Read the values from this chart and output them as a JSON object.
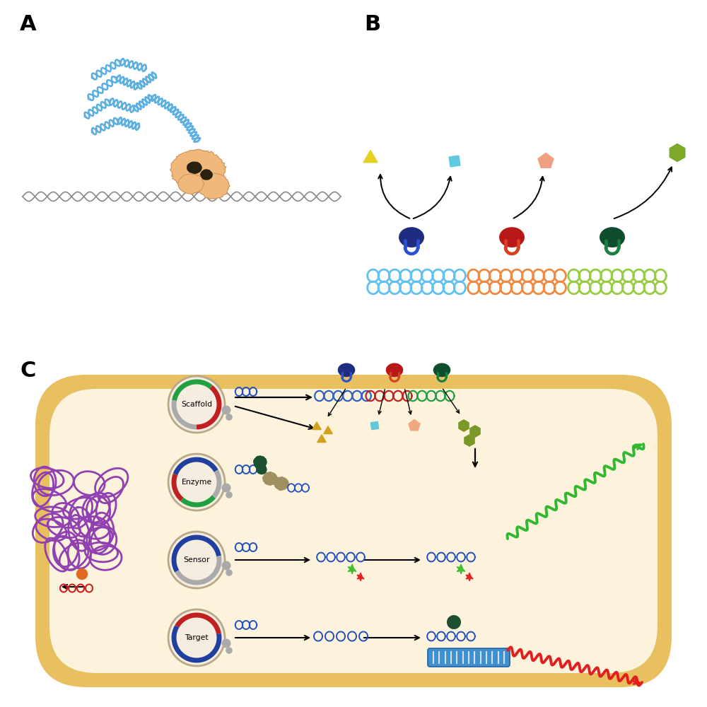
{
  "bg": "#ffffff",
  "label_A": "A",
  "label_B": "B",
  "label_C": "C",
  "rna_blue": "#5aafe0",
  "protein_orange": "#f0b87a",
  "dna_grey": "#888888",
  "scaffold_colors": [
    "#60c0f0",
    "#f08840",
    "#98cc40"
  ],
  "enzyme_body_colors": [
    "#1e2d80",
    "#b81818",
    "#0e4e2e"
  ],
  "enzyme_foot_colors": [
    "#2a52d0",
    "#d84020",
    "#1a8040"
  ],
  "product_colors": {
    "triangle": "#e8d020",
    "square": "#60c8e0",
    "pentagon": "#f0a080",
    "hexagon": "#7aaa28"
  },
  "cell_outer": "#e8c060",
  "cell_inner": "#fdf3dc",
  "circle_bg": "#f5ede0",
  "circle_border": "#b8a888",
  "plasmid_arcs": {
    "Scaffold": [
      [
        "#20a040",
        50,
        170
      ],
      [
        "#aaaaaa",
        170,
        270
      ],
      [
        "#c02020",
        270,
        410
      ]
    ],
    "Enzyme": [
      [
        "#2040a0",
        30,
        160
      ],
      [
        "#c02020",
        160,
        230
      ],
      [
        "#20a040",
        230,
        320
      ],
      [
        "#aaaaaa",
        320,
        390
      ]
    ],
    "Sensor": [
      [
        "#2040a0",
        10,
        210
      ],
      [
        "#aaaaaa",
        210,
        370
      ]
    ],
    "Target": [
      [
        "#c02020",
        10,
        150
      ],
      [
        "#2040a0",
        150,
        370
      ]
    ]
  },
  "purple": "#9040b0",
  "blue_rna": "#2050c0",
  "dark_green": "#1a5030",
  "orange_dot": "#e06820",
  "red_star": "#e82020",
  "green_star": "#40c030",
  "green_arrow": "#30b830",
  "red_wavy": "#e02020"
}
